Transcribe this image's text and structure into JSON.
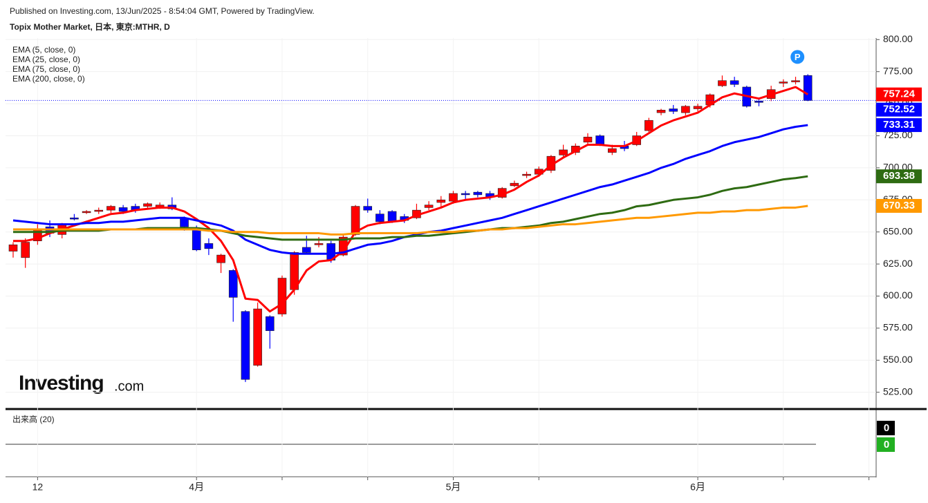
{
  "header": {
    "published": "Published on Investing.com, 13/Jun/2025 - 8:54:04 GMT, Powered by TradingView.",
    "symbol": "Topix Mother Market, 日本, 東京:MTHR, D"
  },
  "logo": {
    "main": "Investing",
    "suffix": ".com"
  },
  "annotation": "P",
  "volume": {
    "title": "出来高 (20)",
    "last": 0,
    "ma": 0
  },
  "chart_data": {
    "type": "candlestick",
    "categories": [
      null,
      null,
      "12",
      null,
      null,
      null,
      null,
      null,
      null,
      null,
      null,
      null,
      null,
      null,
      null,
      "4月",
      null,
      null,
      null,
      null,
      null,
      null,
      null,
      null,
      null,
      null,
      null,
      null,
      null,
      null,
      null,
      null,
      null,
      null,
      null,
      null,
      "5月",
      null,
      null,
      null,
      null,
      null,
      null,
      null,
      null,
      null,
      null,
      null,
      null,
      null,
      null,
      null,
      null,
      null,
      null,
      null,
      "6月",
      null,
      null,
      null,
      null,
      null,
      null,
      null,
      null,
      null
    ],
    "open": [
      635,
      630,
      643,
      654,
      648,
      661,
      665,
      666,
      667,
      669,
      670,
      670,
      669,
      671,
      661,
      653,
      641,
      626,
      620,
      588,
      546,
      584,
      586,
      605,
      638,
      640,
      641,
      632,
      648,
      670,
      664,
      666,
      662,
      661,
      669,
      673,
      674,
      680,
      681,
      680,
      677,
      686,
      694,
      695,
      698,
      710,
      712,
      720,
      725,
      712,
      717,
      718,
      729,
      743,
      746,
      743,
      746,
      749,
      764,
      768,
      763,
      752,
      754,
      766,
      767,
      772
    ],
    "high": [
      642,
      645,
      656,
      659,
      657,
      664,
      667,
      669,
      671,
      671,
      672,
      673,
      673,
      677,
      662,
      655,
      645,
      633,
      621,
      589,
      595,
      585,
      616,
      635,
      647,
      646,
      643,
      648,
      671,
      676,
      667,
      667,
      664,
      672,
      674,
      678,
      682,
      682,
      682,
      682,
      685,
      690,
      697,
      701,
      710,
      718,
      719,
      727,
      726,
      718,
      721,
      728,
      739,
      746,
      749,
      749,
      750,
      758,
      772,
      771,
      764,
      754,
      764,
      769,
      771,
      773
    ],
    "low": [
      630,
      622,
      640,
      646,
      645,
      659,
      664,
      664,
      665,
      664,
      665,
      668,
      668,
      667,
      651,
      635,
      632,
      618,
      580,
      533,
      545,
      559,
      584,
      601,
      633,
      638,
      626,
      631,
      647,
      665,
      656,
      657,
      657,
      660,
      667,
      669,
      672,
      675,
      677,
      675,
      676,
      685,
      692,
      693,
      696,
      708,
      710,
      718,
      717,
      710,
      713,
      717,
      728,
      741,
      742,
      741,
      744,
      747,
      763,
      763,
      747,
      748,
      752,
      763,
      765,
      752
    ],
    "close": [
      640,
      642,
      652,
      649,
      656,
      660,
      666,
      667,
      670,
      666,
      667,
      672,
      671,
      668,
      654,
      636,
      637,
      632,
      599,
      535,
      590,
      573,
      614,
      634,
      634,
      641,
      628,
      646,
      670,
      667,
      658,
      658,
      659,
      667,
      671,
      675,
      680,
      679,
      679,
      677,
      684,
      688,
      695,
      699,
      709,
      714,
      717,
      724,
      718,
      715,
      715,
      725,
      737,
      745,
      744,
      748,
      748,
      757,
      768,
      765,
      748,
      751,
      761,
      767,
      768,
      752.52
    ],
    "up_color": "#ff0000",
    "down_color": "#0000ff",
    "series": [
      {
        "name": "EMA (5, close, 0)",
        "color": "#ff0000",
        "values": [
          643,
          643,
          645,
          649,
          652,
          655,
          658,
          661,
          664,
          665,
          667,
          668,
          669,
          669,
          666,
          660,
          653,
          643,
          628,
          598,
          597,
          588,
          594,
          605,
          620,
          627,
          628,
          635,
          650,
          655,
          657,
          658,
          659,
          663,
          666,
          669,
          673,
          675,
          676,
          677,
          679,
          683,
          689,
          694,
          702,
          708,
          713,
          718,
          718,
          717,
          717,
          721,
          727,
          733,
          737,
          740,
          743,
          749,
          755,
          758,
          756,
          754,
          757,
          760,
          763,
          757.24
        ]
      },
      {
        "name": "EMA (25, close, 0)",
        "color": "#0000ff",
        "values": [
          659,
          658,
          657,
          656,
          656,
          656,
          657,
          657,
          658,
          658,
          659,
          660,
          661,
          661,
          661,
          659,
          657,
          655,
          651,
          644,
          640,
          636,
          634,
          633,
          633,
          633,
          633,
          634,
          637,
          640,
          641,
          643,
          646,
          648,
          650,
          651,
          653,
          655,
          657,
          659,
          661,
          664,
          667,
          670,
          673,
          676,
          679,
          682,
          685,
          687,
          690,
          693,
          696,
          700,
          703,
          707,
          710,
          713,
          717,
          720,
          722,
          724,
          727,
          730,
          732,
          733.31
        ]
      },
      {
        "name": "EMA (75, close, 0)",
        "color": "#2e6b12",
        "values": [
          650,
          650,
          650,
          650,
          651,
          651,
          651,
          651,
          652,
          652,
          652,
          653,
          653,
          653,
          653,
          653,
          652,
          651,
          649,
          647,
          646,
          645,
          644,
          644,
          644,
          644,
          644,
          644,
          645,
          645,
          645,
          646,
          646,
          647,
          647,
          648,
          649,
          650,
          651,
          652,
          653,
          653,
          654,
          655,
          657,
          658,
          660,
          662,
          664,
          665,
          667,
          670,
          671,
          673,
          675,
          676,
          677,
          679,
          682,
          684,
          685,
          687,
          689,
          691,
          692,
          693.38
        ]
      },
      {
        "name": "EMA (200, close, 0)",
        "color": "#ff9900",
        "values": [
          652,
          652,
          652,
          652,
          652,
          652,
          652,
          652,
          652,
          652,
          652,
          652,
          652,
          652,
          652,
          652,
          651,
          651,
          650,
          650,
          650,
          649,
          649,
          649,
          649,
          649,
          648,
          648,
          649,
          649,
          649,
          649,
          649,
          649,
          650,
          650,
          650,
          651,
          651,
          652,
          652,
          653,
          653,
          654,
          655,
          656,
          656,
          657,
          658,
          659,
          660,
          661,
          661,
          662,
          663,
          664,
          665,
          665,
          666,
          666,
          667,
          667,
          668,
          669,
          669,
          670.33
        ]
      }
    ],
    "ylim": [
      513,
      805
    ],
    "yticks": [
      {
        "value": 525,
        "label": "525.00"
      },
      {
        "value": 550,
        "label": "550.00"
      },
      {
        "value": 575,
        "label": "575.00"
      },
      {
        "value": 600,
        "label": "600.00"
      },
      {
        "value": 625,
        "label": "625.00"
      },
      {
        "value": 650,
        "label": "650.00"
      },
      {
        "value": 675,
        "label": "675.00"
      },
      {
        "value": 700,
        "label": "700.00"
      },
      {
        "value": 725,
        "label": "725.00"
      },
      {
        "value": 750,
        "label": "750.00"
      },
      {
        "value": 775,
        "label": "775.00"
      },
      {
        "value": 800,
        "label": "800.00"
      }
    ],
    "grid": true
  }
}
